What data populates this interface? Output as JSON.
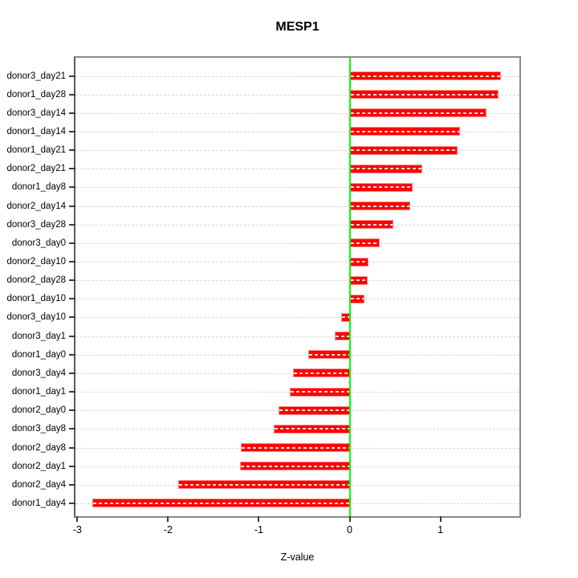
{
  "chart_data": {
    "type": "bar",
    "orientation": "horizontal",
    "title": "MESP1",
    "xlabel": "Z-value",
    "ylabel": "",
    "categories": [
      "donor3_day21",
      "donor1_day28",
      "donor3_day14",
      "donor1_day14",
      "donor1_day21",
      "donor2_day21",
      "donor1_day8",
      "donor2_day14",
      "donor3_day28",
      "donor3_day0",
      "donor2_day10",
      "donor2_day28",
      "donor1_day10",
      "donor3_day10",
      "donor3_day1",
      "donor1_day0",
      "donor3_day4",
      "donor1_day1",
      "donor2_day0",
      "donor3_day8",
      "donor2_day8",
      "donor2_day1",
      "donor2_day4",
      "donor1_day4"
    ],
    "values": [
      1.67,
      1.64,
      1.51,
      1.22,
      1.19,
      0.8,
      0.69,
      0.67,
      0.48,
      0.33,
      0.21,
      0.2,
      0.16,
      -0.09,
      -0.16,
      -0.46,
      -0.62,
      -0.66,
      -0.78,
      -0.84,
      -1.2,
      -1.21,
      -1.89,
      -2.83
    ],
    "x_ticks": [
      "-3",
      "-2",
      "-1",
      "0",
      "1"
    ],
    "x_tick_values": [
      -3,
      -2,
      -1,
      0,
      1
    ],
    "xlim": [
      -3.02,
      1.87
    ],
    "grid": true,
    "grid_style": "dashed",
    "grid_color": "#d9d9d9",
    "bar_color": "#ff0000",
    "bar_border_color": "#ff8a8a",
    "zero_line_color": "#00ff00",
    "legend_position": "none"
  }
}
